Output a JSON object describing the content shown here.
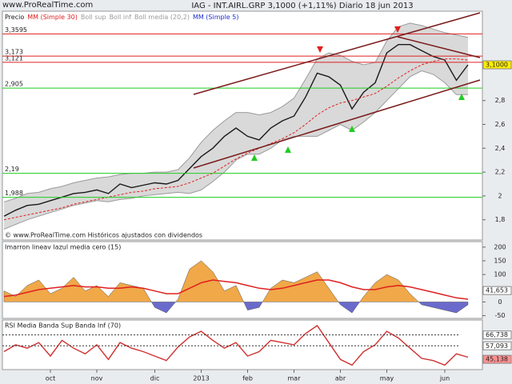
{
  "chart_data": [
    {
      "type": "line",
      "source": "www.ProRealTime.com",
      "title": "IAG - INT.AIRL.GRP   3,1000 (+1,11%)   Diario  18 jun 2013",
      "footnote": "© www.ProRealTime.com Históricos ajustados con dividendos",
      "categories": [
        null,
        null,
        null,
        null,
        "oct",
        null,
        null,
        null,
        "nov",
        null,
        null,
        null,
        null,
        "dic",
        null,
        null,
        null,
        "2013",
        null,
        null,
        null,
        "feb",
        null,
        null,
        null,
        "mar",
        null,
        null,
        null,
        "abr",
        null,
        null,
        null,
        "may",
        null,
        null,
        null,
        null,
        "jun",
        null,
        null
      ],
      "series": [
        {
          "name": "Precio",
          "color": "#1a1a1a",
          "values": [
            1.83,
            1.88,
            1.92,
            1.93,
            1.96,
            1.99,
            2.02,
            2.03,
            2.05,
            2.02,
            2.1,
            2.07,
            2.09,
            2.11,
            2.1,
            2.13,
            2.23,
            2.33,
            2.4,
            2.5,
            2.57,
            2.5,
            2.47,
            2.57,
            2.63,
            2.67,
            2.83,
            3.03,
            3.0,
            2.93,
            2.73,
            2.87,
            2.95,
            3.2,
            3.27,
            3.27,
            3.22,
            3.17,
            3.14,
            2.97,
            3.1
          ]
        },
        {
          "name": "MM (Simple 30)",
          "color": "#e02020",
          "values": [
            1.8,
            1.82,
            1.84,
            1.86,
            1.88,
            1.9,
            1.93,
            1.95,
            1.97,
            1.99,
            2.01,
            2.03,
            2.04,
            2.06,
            2.07,
            2.08,
            2.11,
            2.15,
            2.19,
            2.25,
            2.31,
            2.36,
            2.4,
            2.44,
            2.48,
            2.53,
            2.6,
            2.68,
            2.74,
            2.78,
            2.8,
            2.83,
            2.86,
            2.92,
            2.99,
            3.05,
            3.1,
            3.13,
            3.15,
            3.15,
            3.14
          ]
        },
        {
          "name": "Boll sup",
          "color": "#9a9a9a",
          "band_with": 3,
          "values": [
            1.95,
            1.98,
            2.02,
            2.03,
            2.06,
            2.08,
            2.11,
            2.13,
            2.15,
            2.16,
            2.18,
            2.19,
            2.19,
            2.2,
            2.2,
            2.22,
            2.32,
            2.45,
            2.55,
            2.63,
            2.7,
            2.7,
            2.68,
            2.7,
            2.75,
            2.82,
            2.98,
            3.15,
            3.2,
            3.18,
            3.13,
            3.1,
            3.12,
            3.3,
            3.42,
            3.45,
            3.43,
            3.4,
            3.37,
            3.35,
            3.33
          ]
        },
        {
          "name": "Boll inf",
          "color": "#9a9a9a",
          "values": [
            1.72,
            1.76,
            1.8,
            1.83,
            1.86,
            1.89,
            1.92,
            1.94,
            1.96,
            1.95,
            1.97,
            1.98,
            2.0,
            2.01,
            2.02,
            2.03,
            2.02,
            2.05,
            2.12,
            2.2,
            2.3,
            2.35,
            2.35,
            2.4,
            2.47,
            2.5,
            2.5,
            2.5,
            2.55,
            2.6,
            2.55,
            2.62,
            2.7,
            2.8,
            2.9,
            3.0,
            3.05,
            3.02,
            2.95,
            2.85,
            2.85
          ]
        }
      ],
      "legend_extra": [
        {
          "name": "Boll media (20,2)",
          "color": "#9a9a9a"
        },
        {
          "name": "MM (Simple 5)",
          "color": "#2030d0"
        }
      ],
      "ylim": [
        1.63,
        3.55
      ],
      "yticks": [
        {
          "value": 1.8,
          "label": "1,8"
        },
        2,
        {
          "value": 2.2,
          "label": "2,2"
        },
        {
          "value": 2.4,
          "label": "2,4"
        },
        {
          "value": 2.6,
          "label": "2,6"
        },
        {
          "value": 2.8,
          "label": "2,8"
        }
      ],
      "levels": [
        {
          "value": 3.3595,
          "label": "3,3595",
          "color": "#e02020"
        },
        {
          "value": 3.173,
          "label": "3,173",
          "color": "#e02020"
        },
        {
          "value": 3.121,
          "label": "3,121",
          "color": "#e02020"
        },
        {
          "value": 2.905,
          "label": "2,905",
          "color": "#22cc22"
        },
        {
          "value": 2.19,
          "label": "2,19",
          "color": "#22cc22"
        },
        {
          "value": 1.988,
          "label": "1,988",
          "color": "#22cc22"
        }
      ],
      "current": {
        "value": 3.1,
        "label": "3,1000",
        "color": "#ffee00"
      }
    },
    {
      "type": "area",
      "title": "Imarron lineav lazul media cero (15)",
      "series": [
        {
          "color": "#f0a848",
          "negative_color": "#6a6acc",
          "values": [
            40,
            20,
            60,
            80,
            30,
            50,
            90,
            40,
            60,
            20,
            70,
            60,
            50,
            -20,
            -40,
            10,
            120,
            150,
            110,
            40,
            60,
            -30,
            -20,
            50,
            80,
            70,
            90,
            110,
            50,
            -10,
            -40,
            20,
            70,
            100,
            80,
            30,
            -10,
            -20,
            -30,
            -40,
            -10
          ]
        },
        {
          "color": "#e02020",
          "values": [
            20,
            25,
            35,
            45,
            50,
            55,
            60,
            55,
            55,
            50,
            50,
            55,
            50,
            40,
            30,
            30,
            50,
            70,
            80,
            75,
            70,
            60,
            50,
            45,
            50,
            60,
            70,
            80,
            80,
            70,
            55,
            45,
            45,
            55,
            60,
            55,
            45,
            35,
            25,
            15,
            10
          ]
        }
      ],
      "ylim": [
        -60,
        220
      ],
      "yticks": [
        200,
        150,
        100,
        0,
        -50
      ],
      "current": {
        "value": 41.653,
        "label": "41,653",
        "color": "#ffffff"
      }
    },
    {
      "type": "line",
      "title": "RSI Media Banda Sup Banda Inf (70)",
      "series": [
        {
          "color": "#d03030",
          "values": [
            52,
            58,
            55,
            60,
            48,
            62,
            55,
            50,
            58,
            45,
            60,
            55,
            52,
            48,
            44,
            56,
            65,
            70,
            62,
            55,
            60,
            48,
            52,
            62,
            60,
            58,
            68,
            75,
            60,
            45,
            40,
            52,
            58,
            70,
            64,
            55,
            46,
            44,
            40,
            50,
            47
          ]
        }
      ],
      "ylim": [
        36,
        80
      ],
      "levels": [
        {
          "value": 66.738,
          "label": "66,738",
          "color": "#ffffff",
          "dotted": true
        },
        {
          "value": 57.093,
          "label": "57,093",
          "color": "#ffffff",
          "dotted": true
        },
        {
          "value": 45.138,
          "label": "45,138",
          "color": "#ff9090"
        }
      ]
    }
  ]
}
